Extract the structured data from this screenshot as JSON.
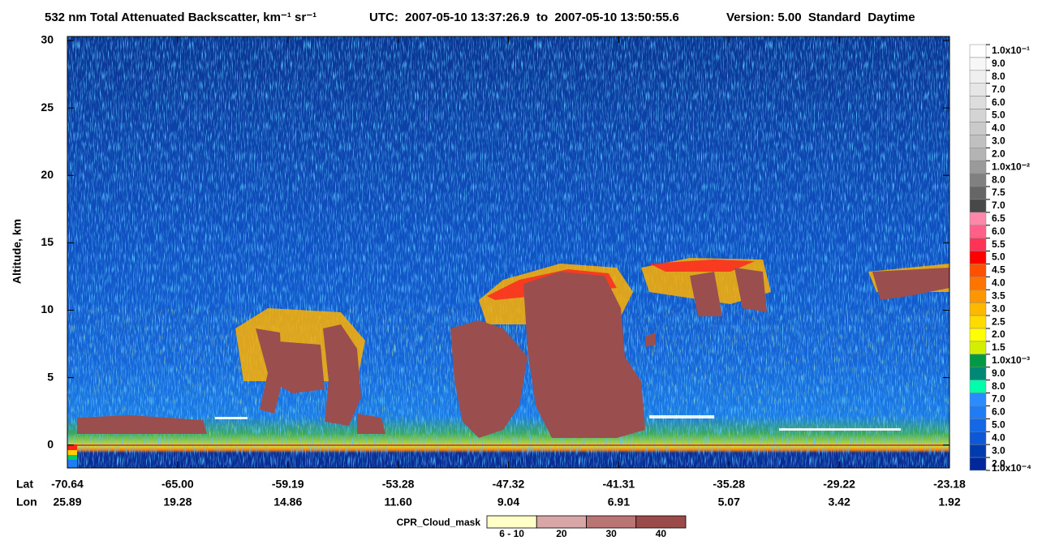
{
  "chart_data": {
    "type": "curtain",
    "title": "532 nm Total Attenuated Backscatter, km⁻¹ sr⁻¹",
    "time_range": "UTC:  2007-05-10 13:37:26.9  to  2007-05-10 13:50:55.6",
    "version": "Version: 5.00  Standard  Daytime",
    "y_label": "Altitude, km",
    "ylim": [
      -1.7,
      30.3
    ],
    "yticks": [
      0,
      5,
      10,
      15,
      20,
      25,
      30
    ],
    "x_rows": [
      {
        "name": "Lat",
        "labels": [
          "-70.64",
          "-65.00",
          "-59.19",
          "-53.28",
          "-47.32",
          "-41.31",
          "-35.28",
          "-29.22",
          "-23.18"
        ]
      },
      {
        "name": "Lon",
        "labels": [
          "25.89",
          "19.28",
          "14.86",
          "11.60",
          "9.04",
          "6.91",
          "5.07",
          "3.42",
          "1.92"
        ]
      }
    ],
    "colorbar": {
      "labels": [
        "1.0x10⁻¹",
        "9.0",
        "8.0",
        "7.0",
        "6.0",
        "5.0",
        "4.0",
        "3.0",
        "2.0",
        "1.0x10⁻²",
        "8.0",
        "7.5",
        "7.0",
        "6.5",
        "6.0",
        "5.5",
        "5.0",
        "4.5",
        "4.0",
        "3.5",
        "3.0",
        "2.5",
        "2.0",
        "1.5",
        "1.0x10⁻³",
        "9.0",
        "8.0",
        "7.0",
        "6.0",
        "5.0",
        "4.0",
        "3.0",
        "2.0",
        "1.0x10⁻⁴"
      ],
      "colors": [
        "#ffffff",
        "#f7f7f7",
        "#efefef",
        "#e6e6e6",
        "#dddddd",
        "#d4d4d4",
        "#cacaca",
        "#c0c0c0",
        "#b4b4b4",
        "#9a9a9a",
        "#808080",
        "#666666",
        "#484848",
        "#ff88aa",
        "#ff6088",
        "#ff3355",
        "#ff0000",
        "#ff5000",
        "#ff7400",
        "#ff9600",
        "#ffb800",
        "#ffdb00",
        "#ffff00",
        "#d4ee00",
        "#009944",
        "#008877",
        "#00ffaa",
        "#2a8cff",
        "#1e7cf4",
        "#1468e6",
        "#0c58d6",
        "#003cb0",
        "#00289a"
      ]
    },
    "mask": {
      "name": "CPR_Cloud_mask",
      "labels": [
        "6 - 10",
        "20",
        "30",
        "40"
      ],
      "colors": [
        "#ffffc8",
        "#d8a6a6",
        "#b97474",
        "#9b4a4a"
      ]
    }
  }
}
